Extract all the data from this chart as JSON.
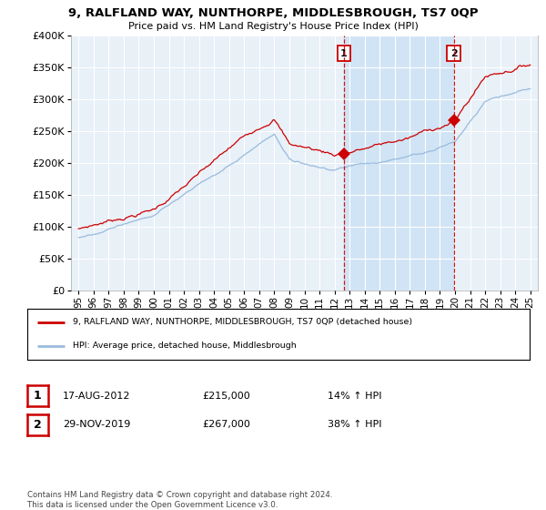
{
  "title": "9, RALFLAND WAY, NUNTHORPE, MIDDLESBROUGH, TS7 0QP",
  "subtitle": "Price paid vs. HM Land Registry's House Price Index (HPI)",
  "ylim": [
    0,
    400000
  ],
  "xlim_start": 1994.5,
  "xlim_end": 2025.5,
  "sale1_x": 2012.63,
  "sale1_y": 215000,
  "sale1_label": "1",
  "sale1_date": "17-AUG-2012",
  "sale1_price": "£215,000",
  "sale1_hpi": "14% ↑ HPI",
  "sale2_x": 2019.92,
  "sale2_y": 267000,
  "sale2_label": "2",
  "sale2_date": "29-NOV-2019",
  "sale2_price": "£267,000",
  "sale2_hpi": "38% ↑ HPI",
  "red_color": "#cc0000",
  "blue_color": "#99bbdd",
  "highlight_color": "#d0e4f5",
  "legend_entry1": "9, RALFLAND WAY, NUNTHORPE, MIDDLESBROUGH, TS7 0QP (detached house)",
  "legend_entry2": "HPI: Average price, detached house, Middlesbrough",
  "footer": "Contains HM Land Registry data © Crown copyright and database right 2024.\nThis data is licensed under the Open Government Licence v3.0.",
  "background_color": "#e8f0f8",
  "plot_bg": "#ffffff",
  "x_ticks": [
    1995,
    1996,
    1997,
    1998,
    1999,
    2000,
    2001,
    2002,
    2003,
    2004,
    2005,
    2006,
    2007,
    2008,
    2009,
    2010,
    2011,
    2012,
    2013,
    2014,
    2015,
    2016,
    2017,
    2018,
    2019,
    2020,
    2021,
    2022,
    2023,
    2024,
    2025
  ],
  "x_tick_labels": [
    "95",
    "96",
    "97",
    "98",
    "99",
    "00",
    "01",
    "02",
    "03",
    "04",
    "05",
    "06",
    "07",
    "08",
    "09",
    "10",
    "11",
    "12",
    "13",
    "14",
    "15",
    "16",
    "17",
    "18",
    "19",
    "20",
    "21",
    "22",
    "23",
    "24",
    "25"
  ]
}
